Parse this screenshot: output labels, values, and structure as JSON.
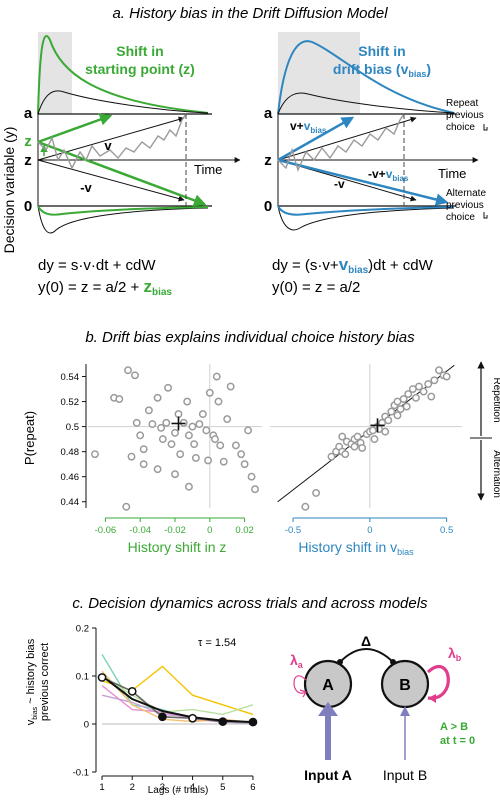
{
  "colors": {
    "green": "#3aa935",
    "blue": "#2e86c1",
    "gray": "#999999",
    "pink": "#e23c8c",
    "purple": "#7f7fc0"
  },
  "panel_a": {
    "title": "a. History bias in the Drift Diffusion Model",
    "y_label": "Decision variable (y)",
    "left": {
      "shift_line1": "Shift in",
      "shift_line2": "starting point (z)",
      "label_a": "a",
      "label_z": "z",
      "label_0": "0",
      "label_zbias": "z",
      "label_v": "v",
      "label_negv": "-v",
      "label_time": "Time",
      "eq1": "dy = s·v·dt + cdW",
      "eq2_pre": "y(0) = z = a/2 + ",
      "eq2_z": "z",
      "eq2_sub": "bias"
    },
    "right": {
      "shift_line1": "Shift in",
      "shift_line2_pre": "drift bias (v",
      "shift_line2_sub": "bias",
      "shift_line2_post": ")",
      "label_a": "a",
      "label_z": "z",
      "label_0": "0",
      "label_vplus": "v+",
      "label_vsub": "bias",
      "label_negv": "-v",
      "label_negv2": "-v+",
      "label_negv2_sub": "bias",
      "label_time": "Time",
      "repeat_line1": "Repeat",
      "repeat_line2": "previous",
      "repeat_line3": "choice",
      "alt_line1": "Alternate",
      "alt_line2": "previous",
      "alt_line3": "choice",
      "eq1_pre": "dy = (s·v+",
      "eq1_v": "v",
      "eq1_sub": "bias",
      "eq1_post": ")dt + cdW",
      "eq2": "y(0) = z = a/2"
    }
  },
  "panel_b": {
    "title": "b. Drift bias explains individual choice history bias",
    "y_label": "P(repeat)",
    "x_label_left": "History shift in z",
    "x_label_right_pre": "History shift in v",
    "x_label_right_sub": "bias",
    "side_repetition": "Repetition",
    "side_alternation": "Alternation",
    "y_ticks": [
      "0.54",
      "0.52",
      "0.5",
      "0.48",
      "0.46",
      "0.44"
    ],
    "x_ticks_left": [
      "-0.06",
      "-0.04",
      "-0.02",
      "0",
      "0.02"
    ],
    "x_ticks_right": [
      "-0.5",
      "0",
      "0.5"
    ]
  },
  "chart_data": [
    {
      "type": "scatter",
      "xlabel": "History shift in z",
      "ylabel": "P(repeat)",
      "xlim": [
        -0.07,
        0.03
      ],
      "ylim": [
        0.435,
        0.55
      ],
      "points": [
        [
          -0.055,
          0.523
        ],
        [
          -0.052,
          0.522
        ],
        [
          -0.047,
          0.545
        ],
        [
          -0.043,
          0.541
        ],
        [
          -0.042,
          0.503
        ],
        [
          -0.04,
          0.493
        ],
        [
          -0.038,
          0.482
        ],
        [
          -0.045,
          0.476
        ],
        [
          -0.035,
          0.513
        ],
        [
          -0.033,
          0.502
        ],
        [
          -0.03,
          0.523
        ],
        [
          -0.028,
          0.499
        ],
        [
          -0.027,
          0.49
        ],
        [
          -0.025,
          0.503
        ],
        [
          -0.024,
          0.531
        ],
        [
          -0.022,
          0.486
        ],
        [
          -0.02,
          0.495
        ],
        [
          -0.018,
          0.51
        ],
        [
          -0.017,
          0.478
        ],
        [
          -0.015,
          0.503
        ],
        [
          -0.013,
          0.52
        ],
        [
          -0.012,
          0.493
        ],
        [
          -0.01,
          0.5
        ],
        [
          -0.009,
          0.486
        ],
        [
          -0.008,
          0.475
        ],
        [
          -0.006,
          0.502
        ],
        [
          -0.004,
          0.51
        ],
        [
          -0.002,
          0.497
        ],
        [
          0.0,
          0.527
        ],
        [
          0.002,
          0.493
        ],
        [
          0.003,
          0.49
        ],
        [
          0.005,
          0.52
        ],
        [
          0.006,
          0.485
        ],
        [
          0.008,
          0.472
        ],
        [
          0.01,
          0.506
        ],
        [
          0.012,
          0.532
        ],
        [
          0.015,
          0.485
        ],
        [
          0.018,
          0.478
        ],
        [
          0.02,
          0.47
        ],
        [
          0.022,
          0.497
        ],
        [
          0.024,
          0.46
        ],
        [
          0.026,
          0.45
        ],
        [
          -0.066,
          0.478
        ],
        [
          -0.048,
          0.436
        ],
        [
          -0.03,
          0.466
        ],
        [
          -0.02,
          0.462
        ],
        [
          -0.012,
          0.452
        ],
        [
          0.004,
          0.54
        ],
        [
          -0.001,
          0.473
        ],
        [
          -0.038,
          0.47
        ]
      ],
      "mean": [
        -0.018,
        0.5025
      ]
    },
    {
      "type": "scatter",
      "xlabel": "History shift in v bias",
      "ylabel": "P(repeat)",
      "xlim": [
        -0.65,
        0.6
      ],
      "ylim": [
        0.435,
        0.55
      ],
      "points": [
        [
          -0.42,
          0.436
        ],
        [
          -0.35,
          0.447
        ],
        [
          -0.25,
          0.476
        ],
        [
          -0.22,
          0.48
        ],
        [
          -0.2,
          0.484
        ],
        [
          -0.18,
          0.48
        ],
        [
          -0.16,
          0.478
        ],
        [
          -0.15,
          0.488
        ],
        [
          -0.12,
          0.486
        ],
        [
          -0.1,
          0.49
        ],
        [
          -0.08,
          0.492
        ],
        [
          -0.06,
          0.487
        ],
        [
          -0.05,
          0.483
        ],
        [
          -0.02,
          0.494
        ],
        [
          0.0,
          0.496
        ],
        [
          0.02,
          0.497
        ],
        [
          0.03,
          0.49
        ],
        [
          0.05,
          0.5
        ],
        [
          0.08,
          0.503
        ],
        [
          0.1,
          0.508
        ],
        [
          0.12,
          0.505
        ],
        [
          0.14,
          0.512
        ],
        [
          0.16,
          0.517
        ],
        [
          0.18,
          0.52
        ],
        [
          0.2,
          0.514
        ],
        [
          0.22,
          0.522
        ],
        [
          0.25,
          0.526
        ],
        [
          0.28,
          0.53
        ],
        [
          0.3,
          0.523
        ],
        [
          0.32,
          0.532
        ],
        [
          0.35,
          0.528
        ],
        [
          0.38,
          0.534
        ],
        [
          0.4,
          0.524
        ],
        [
          0.42,
          0.537
        ],
        [
          0.45,
          0.545
        ],
        [
          0.48,
          0.541
        ],
        [
          0.5,
          0.54
        ],
        [
          -0.1,
          0.484
        ],
        [
          0.06,
          0.498
        ],
        [
          0.18,
          0.509
        ],
        [
          -0.18,
          0.492
        ],
        [
          0.24,
          0.516
        ],
        [
          0.1,
          0.496
        ]
      ],
      "mean": [
        0.05,
        0.501
      ],
      "fit_line": [
        [
          -0.6,
          0.44
        ],
        [
          0.55,
          0.549
        ]
      ]
    },
    {
      "type": "line",
      "ylabel": "v bias ~ history bias previous correct",
      "xlabel": "Lags (# trials)",
      "x": [
        1,
        2,
        3,
        4,
        5,
        6
      ],
      "xlim": [
        0.8,
        6.3
      ],
      "ylim": [
        -0.1,
        0.2
      ],
      "annotation": "τ = 1.54",
      "mean_series": [
        0.097,
        0.068,
        0.015,
        0.012,
        0.005,
        0.004
      ],
      "mean_filled": [
        false,
        false,
        true,
        false,
        true,
        true
      ],
      "fit_curve": [
        0.1,
        0.052,
        0.027,
        0.014,
        0.007,
        0.004
      ],
      "thin_series": [
        {
          "color": "#f5c400",
          "values": [
            0.09,
            0.07,
            0.12,
            0.06,
            0.04,
            0.02
          ]
        },
        {
          "color": "#7bd3b5",
          "values": [
            0.145,
            0.04,
            0.03,
            0.01,
            0.005,
            0.0
          ]
        },
        {
          "color": "#e890d0",
          "values": [
            0.08,
            0.03,
            0.025,
            0.01,
            0.004,
            0.002
          ]
        },
        {
          "color": "#c9a0d8",
          "values": [
            0.06,
            0.045,
            0.02,
            0.015,
            0.003,
            0.004
          ]
        },
        {
          "color": "#b8e0a0",
          "values": [
            0.1,
            0.06,
            0.025,
            0.03,
            0.02,
            0.04
          ]
        },
        {
          "color": "#f0c070",
          "values": [
            0.11,
            0.04,
            0.01,
            0.005,
            0.01,
            0.003
          ]
        }
      ]
    }
  ],
  "panel_c": {
    "title": "c. Decision dynamics across trials and across models",
    "y_label_line1_pre": "v",
    "y_label_line1_sub": "bias",
    "y_label_line1_post": " ~ history bias",
    "y_label_line2": "previous correct",
    "x_label": "Lags (# trials)",
    "tau": "τ = 1.54",
    "y_ticks": [
      "0.2",
      "0.1",
      "0",
      "-0.1"
    ],
    "x_ticks": [
      "1",
      "2",
      "3",
      "4",
      "5",
      "6"
    ],
    "model": {
      "node_a": "A",
      "node_b": "B",
      "delta": "Δ",
      "lambda_a": "λ",
      "lambda_a_sub": "a",
      "lambda_b": "λ",
      "lambda_b_sub": "b",
      "input_a": "Input A",
      "input_b": "Input B",
      "cond_line1": "A > B",
      "cond_line2": "at t = 0"
    }
  }
}
